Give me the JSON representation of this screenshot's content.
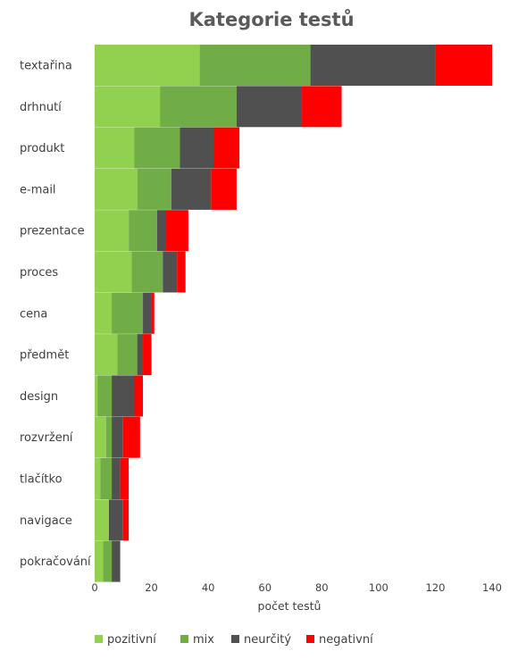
{
  "chart_data": {
    "type": "bar",
    "orientation": "horizontal",
    "stacked": true,
    "title": "Kategorie testů",
    "xlabel": "počet testů",
    "ylabel": "",
    "xlim": [
      0,
      140
    ],
    "xticks": [
      0,
      20,
      40,
      60,
      80,
      100,
      120,
      140
    ],
    "grid": false,
    "legend_position": "bottom",
    "categories": [
      "textařina",
      "drhnutí",
      "produkt",
      "e-mail",
      "prezentace",
      "proces",
      "cena",
      "předmět",
      "design",
      "rozvržení",
      "tlačítko",
      "navigace",
      "pokračování"
    ],
    "series": [
      {
        "name": "pozitivní",
        "color": "#92d050",
        "values": [
          37,
          23,
          14,
          15,
          12,
          13,
          6,
          8,
          1,
          4,
          2,
          5,
          3
        ]
      },
      {
        "name": "mix",
        "color": "#70ad47",
        "values": [
          39,
          27,
          16,
          12,
          10,
          11,
          11,
          7,
          5,
          2,
          4,
          0,
          3
        ]
      },
      {
        "name": "neurčitý",
        "color": "#505050",
        "values": [
          44,
          23,
          12,
          14,
          3,
          5,
          3,
          2,
          8,
          4,
          3,
          5,
          3
        ]
      },
      {
        "name": "negativní",
        "color": "#ff0000",
        "values": [
          20,
          14,
          9,
          9,
          8,
          3,
          1,
          3,
          3,
          6,
          3,
          2,
          0
        ]
      }
    ]
  }
}
